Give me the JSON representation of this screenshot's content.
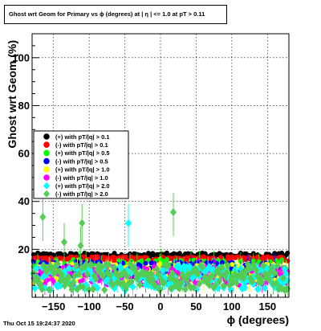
{
  "title": "Ghost wrt Geom for Primary vs ϕ (degrees) at | η | <= 1.0 at pT > 0.11",
  "timestamp": "Thu Oct 15 19:24:37 2020",
  "chart_data": {
    "type": "scatter",
    "xlabel": "ϕ (degrees)",
    "ylabel": "Ghost wrt Geom (%)",
    "xlim": [
      -180,
      180
    ],
    "ylim": [
      0,
      110
    ],
    "xticks": [
      -150,
      -100,
      -50,
      0,
      50,
      100,
      150
    ],
    "yticks": [
      20,
      40,
      60,
      80,
      100
    ],
    "xtick_labels": [
      "−150",
      "−100",
      "−50",
      "0",
      "50",
      "100",
      "150"
    ],
    "ytick_labels": [
      "20",
      "40",
      "60",
      "80",
      "100"
    ],
    "grid": true,
    "legend_position": "middle-left",
    "series": [
      {
        "name": "(+) with pT/|q| > 0.1",
        "color": "#000000",
        "marker": "circle",
        "band": [
          16.5,
          18.5
        ],
        "outliers": []
      },
      {
        "name": "(-) with pT/|q| > 0.1",
        "color": "#ff0000",
        "marker": "circle",
        "band": [
          15.0,
          17.0
        ],
        "outliers": []
      },
      {
        "name": "(+) with pT/|q| > 0.5",
        "color": "#00ff00",
        "marker": "circle",
        "band": [
          8.0,
          16.0
        ],
        "outliers": []
      },
      {
        "name": "(-) with pT/|q| > 0.5",
        "color": "#0000ff",
        "marker": "circle",
        "band": [
          7.0,
          15.0
        ],
        "outliers": []
      },
      {
        "name": "(+) with pT/|q| > 1.0",
        "color": "#ffff00",
        "marker": "circle",
        "band": [
          6.0,
          14.0
        ],
        "outliers": []
      },
      {
        "name": "(-) with pT/|q| > 1.0",
        "color": "#ff00ff",
        "marker": "circle",
        "band": [
          5.0,
          13.0
        ],
        "outliers": []
      },
      {
        "name": "(+) with pT/|q| > 2.0",
        "color": "#00ffff",
        "marker": "diamond",
        "band": [
          3.0,
          13.0
        ],
        "outliers": [
          {
            "x": -45,
            "y": 31
          }
        ]
      },
      {
        "name": "(-) with pT/|q| > 2.0",
        "color": "#55cc55",
        "marker": "diamond",
        "band": [
          3.0,
          14.0
        ],
        "outliers": [
          {
            "x": -165,
            "y": 33.5
          },
          {
            "x": -135,
            "y": 23
          },
          {
            "x": -110,
            "y": 31
          },
          {
            "x": -112,
            "y": 21.5
          },
          {
            "x": 18,
            "y": 35.5
          }
        ]
      }
    ]
  }
}
